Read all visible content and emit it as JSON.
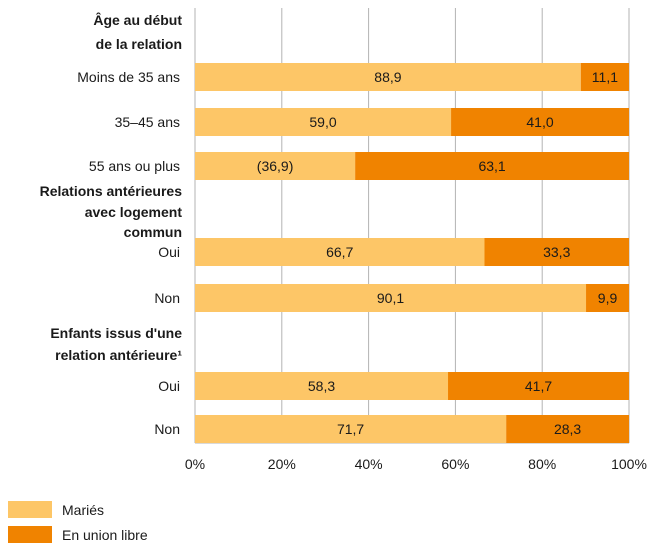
{
  "chart_data": {
    "type": "bar",
    "orientation": "horizontal",
    "stacked": true,
    "xlim": [
      0,
      100
    ],
    "grid": true,
    "x_ticks": [
      "0%",
      "20%",
      "40%",
      "60%",
      "80%",
      "100%"
    ],
    "groups": [
      {
        "heading": "Âge au début de la relation",
        "heading_lines": [
          "Âge au début",
          "de la relation"
        ],
        "rows": [
          {
            "label": "Moins de 35 ans",
            "values": [
              88.9,
              11.1
            ],
            "value_labels": [
              "88,9",
              "11,1"
            ]
          },
          {
            "label": "35–45 ans",
            "values": [
              59.0,
              41.0
            ],
            "value_labels": [
              "59,0",
              "41,0"
            ]
          },
          {
            "label": "55 ans ou plus",
            "values": [
              36.9,
              63.1
            ],
            "value_labels": [
              "(36,9)",
              "63,1"
            ]
          }
        ]
      },
      {
        "heading": "Relations antérieures avec logement commun",
        "heading_lines": [
          "Relations antérieures",
          "avec logement",
          "commun"
        ],
        "rows": [
          {
            "label": "Oui",
            "values": [
              66.7,
              33.3
            ],
            "value_labels": [
              "66,7",
              "33,3"
            ]
          },
          {
            "label": "Non",
            "values": [
              90.1,
              9.9
            ],
            "value_labels": [
              "90,1",
              "9,9"
            ]
          }
        ]
      },
      {
        "heading": "Enfants issus d'une relation antérieure¹",
        "heading_lines": [
          "Enfants issus d'une",
          "relation antérieure¹"
        ],
        "rows": [
          {
            "label": "Oui",
            "values": [
              58.3,
              41.7
            ],
            "value_labels": [
              "58,3",
              "41,7"
            ]
          },
          {
            "label": "Non",
            "values": [
              71.7,
              28.3
            ],
            "value_labels": [
              "71,7",
              "28,3"
            ]
          }
        ]
      }
    ],
    "series": [
      {
        "name": "Mariés",
        "color": "#fdc667"
      },
      {
        "name": "En union libre",
        "color": "#f08300"
      }
    ]
  }
}
